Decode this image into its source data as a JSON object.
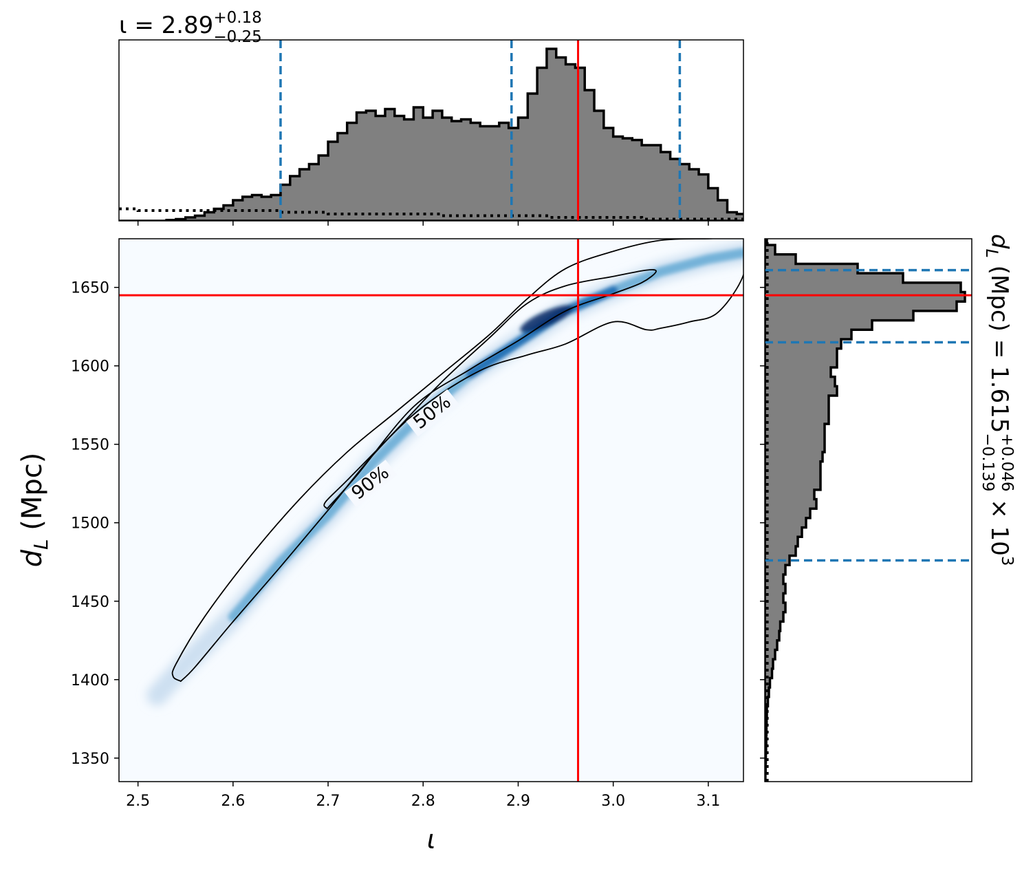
{
  "figure": {
    "top_title": {
      "prefix": "ι = 2.89",
      "sup": "+0.18",
      "sub": "−0.25"
    },
    "right_title": {
      "prefix": "d",
      "prefix_sub": "L",
      "middle": " (Mpc) = 1.615",
      "sup": "+0.046",
      "sub": "−0.139",
      "suffix": " × 10",
      "suffix_sup": "3"
    },
    "x_label": "ι",
    "y_label": {
      "main": "d",
      "sub": "L",
      "rest": " (Mpc)"
    },
    "contour_labels": [
      "50%",
      "90%"
    ]
  },
  "colors": {
    "hist_fill": "#808080",
    "hist_edge": "#000000",
    "quantile": "#1f77b4",
    "truth": "#ff0000",
    "density_low": "#f7fbff",
    "density_high": "#08306b"
  },
  "chart_data": [
    {
      "type": "area",
      "name": "iota-marginal-histogram",
      "xlim": [
        2.48,
        3.137
      ],
      "x_bins": [
        2.48,
        2.49,
        2.5,
        2.51,
        2.52,
        2.53,
        2.54,
        2.55,
        2.56,
        2.57,
        2.58,
        2.59,
        2.6,
        2.61,
        2.62,
        2.63,
        2.64,
        2.65,
        2.66,
        2.67,
        2.68,
        2.69,
        2.7,
        2.71,
        2.72,
        2.73,
        2.74,
        2.75,
        2.76,
        2.77,
        2.78,
        2.79,
        2.8,
        2.81,
        2.82,
        2.83,
        2.84,
        2.85,
        2.86,
        2.87,
        2.88,
        2.89,
        2.9,
        2.91,
        2.92,
        2.93,
        2.94,
        2.95,
        2.96,
        2.97,
        2.98,
        2.99,
        3.0,
        3.01,
        3.02,
        3.03,
        3.04,
        3.05,
        3.06,
        3.07,
        3.08,
        3.09,
        3.1,
        3.11,
        3.12,
        3.13
      ],
      "y": [
        0,
        0,
        0,
        0,
        0,
        0.005,
        0.01,
        0.02,
        0.03,
        0.05,
        0.07,
        0.09,
        0.12,
        0.14,
        0.15,
        0.14,
        0.15,
        0.21,
        0.26,
        0.3,
        0.33,
        0.38,
        0.46,
        0.51,
        0.57,
        0.63,
        0.64,
        0.61,
        0.65,
        0.61,
        0.59,
        0.66,
        0.6,
        0.64,
        0.6,
        0.58,
        0.59,
        0.57,
        0.55,
        0.55,
        0.57,
        0.54,
        0.6,
        0.74,
        0.89,
        1.0,
        0.95,
        0.91,
        0.89,
        0.76,
        0.64,
        0.54,
        0.49,
        0.48,
        0.47,
        0.44,
        0.44,
        0.4,
        0.36,
        0.33,
        0.3,
        0.27,
        0.19,
        0.12,
        0.05,
        0.04
      ],
      "prior_y": [
        0.07,
        0.07,
        0.06,
        0.06,
        0.06,
        0.06,
        0.06,
        0.06,
        0.06,
        0.06,
        0.06,
        0.06,
        0.06,
        0.06,
        0.06,
        0.06,
        0.06,
        0.05,
        0.05,
        0.05,
        0.05,
        0.05,
        0.04,
        0.04,
        0.04,
        0.04,
        0.04,
        0.04,
        0.04,
        0.04,
        0.04,
        0.04,
        0.04,
        0.04,
        0.03,
        0.03,
        0.03,
        0.03,
        0.03,
        0.03,
        0.03,
        0.03,
        0.03,
        0.03,
        0.03,
        0.02,
        0.02,
        0.02,
        0.02,
        0.02,
        0.02,
        0.02,
        0.02,
        0.02,
        0.02,
        0.01,
        0.01,
        0.01,
        0.01,
        0.01,
        0.01,
        0.01,
        0.01,
        0.01,
        0.01,
        0.01
      ],
      "quantiles": [
        2.65,
        2.893,
        3.07
      ],
      "truth": 2.963
    },
    {
      "type": "area",
      "name": "dL-marginal-histogram",
      "ylim": [
        1335,
        1681
      ],
      "y_bins": [
        1335,
        1341,
        1347,
        1353,
        1359,
        1365,
        1371,
        1377,
        1383,
        1389,
        1395,
        1401,
        1407,
        1413,
        1419,
        1425,
        1431,
        1437,
        1443,
        1449,
        1455,
        1461,
        1467,
        1473,
        1479,
        1485,
        1491,
        1497,
        1503,
        1509,
        1515,
        1521,
        1527,
        1533,
        1539,
        1545,
        1551,
        1557,
        1563,
        1569,
        1575,
        1581,
        1587,
        1593,
        1599,
        1605,
        1611,
        1617,
        1623,
        1629,
        1635,
        1641,
        1647,
        1653,
        1659,
        1665,
        1671,
        1677
      ],
      "x": [
        0.003,
        0.004,
        0.005,
        0.006,
        0.007,
        0.008,
        0.009,
        0.01,
        0.015,
        0.02,
        0.025,
        0.035,
        0.04,
        0.05,
        0.06,
        0.07,
        0.075,
        0.09,
        0.1,
        0.09,
        0.1,
        0.09,
        0.1,
        0.12,
        0.15,
        0.16,
        0.18,
        0.2,
        0.22,
        0.25,
        0.24,
        0.27,
        0.27,
        0.27,
        0.28,
        0.29,
        0.29,
        0.29,
        0.31,
        0.31,
        0.31,
        0.35,
        0.34,
        0.32,
        0.35,
        0.35,
        0.37,
        0.42,
        0.52,
        0.72,
        0.93,
        0.97,
        0.95,
        0.67,
        0.45,
        0.15,
        0.05,
        0.01
      ],
      "prior_x": [
        0.012,
        0.012,
        0.012,
        0.012,
        0.012,
        0.012,
        0.012,
        0.012,
        0.012,
        0.012,
        0.012,
        0.012,
        0.012,
        0.012,
        0.012,
        0.012,
        0.012,
        0.012,
        0.012,
        0.012,
        0.012,
        0.012,
        0.012,
        0.012,
        0.012,
        0.012,
        0.012,
        0.012,
        0.012,
        0.012,
        0.012,
        0.012,
        0.012,
        0.012,
        0.012,
        0.012,
        0.012,
        0.012,
        0.012,
        0.012,
        0.012,
        0.012,
        0.012,
        0.012,
        0.012,
        0.012,
        0.012,
        0.012,
        0.012,
        0.012,
        0.012,
        0.012,
        0.012,
        0.012,
        0.012,
        0.012,
        0.012,
        0.012
      ],
      "quantiles": [
        1476,
        1615,
        1661
      ],
      "truth": 1645
    },
    {
      "type": "heatmap",
      "name": "joint-posterior",
      "xlim": [
        2.48,
        3.137
      ],
      "ylim": [
        1335,
        1681
      ],
      "xticks": [
        2.5,
        2.6,
        2.7,
        2.8,
        2.9,
        3.0,
        3.1
      ],
      "xtick_labels": [
        "2.5",
        "2.6",
        "2.7",
        "2.8",
        "2.9",
        "3.0",
        "3.1"
      ],
      "yticks": [
        1350,
        1400,
        1450,
        1500,
        1550,
        1600,
        1650
      ],
      "ytick_labels": [
        "1350",
        "1400",
        "1450",
        "1500",
        "1550",
        "1600",
        "1650"
      ],
      "ridge": [
        [
          2.52,
          1390
        ],
        [
          2.55,
          1410
        ],
        [
          2.6,
          1440
        ],
        [
          2.65,
          1475
        ],
        [
          2.7,
          1505
        ],
        [
          2.75,
          1540
        ],
        [
          2.8,
          1570
        ],
        [
          2.85,
          1595
        ],
        [
          2.9,
          1615
        ],
        [
          2.95,
          1635
        ],
        [
          3.0,
          1648
        ],
        [
          3.05,
          1660
        ],
        [
          3.1,
          1668
        ],
        [
          3.137,
          1672
        ]
      ],
      "peak": [
        2.93,
        1630
      ],
      "contour_90": [
        [
          2.545,
          1399
        ],
        [
          2.537,
          1402
        ],
        [
          2.54,
          1410
        ],
        [
          2.57,
          1440
        ],
        [
          2.62,
          1480
        ],
        [
          2.67,
          1515
        ],
        [
          2.72,
          1545
        ],
        [
          2.77,
          1570
        ],
        [
          2.82,
          1595
        ],
        [
          2.87,
          1620
        ],
        [
          2.91,
          1643
        ],
        [
          2.95,
          1662
        ],
        [
          3.0,
          1673
        ],
        [
          3.05,
          1680
        ],
        [
          3.1,
          1681
        ],
        [
          3.137,
          1681
        ],
        [
          3.137,
          1658
        ],
        [
          3.11,
          1634
        ],
        [
          3.08,
          1628
        ],
        [
          3.05,
          1624
        ],
        [
          3.035,
          1623
        ],
        [
          3.0,
          1628
        ],
        [
          2.95,
          1614
        ],
        [
          2.91,
          1607
        ],
        [
          2.86,
          1597
        ],
        [
          2.8,
          1574
        ],
        [
          2.75,
          1545
        ],
        [
          2.7,
          1508
        ],
        [
          2.65,
          1472
        ],
        [
          2.6,
          1437
        ],
        [
          2.56,
          1408
        ],
        [
          2.545,
          1399
        ]
      ],
      "contour_50": [
        [
          2.699,
          1509
        ],
        [
          2.697,
          1513
        ],
        [
          2.72,
          1527
        ],
        [
          2.77,
          1558
        ],
        [
          2.82,
          1590
        ],
        [
          2.87,
          1618
        ],
        [
          2.91,
          1640
        ],
        [
          2.95,
          1651
        ],
        [
          3.0,
          1657
        ],
        [
          3.035,
          1661
        ],
        [
          3.045,
          1660
        ],
        [
          3.03,
          1653
        ],
        [
          3.0,
          1646
        ],
        [
          2.95,
          1635
        ],
        [
          2.9,
          1616
        ],
        [
          2.85,
          1598
        ],
        [
          2.79,
          1574
        ],
        [
          2.73,
          1530
        ],
        [
          2.699,
          1509
        ]
      ],
      "contour_label_positions": {
        "50%": [
          2.81,
          1570
        ],
        "90%": [
          2.745,
          1525
        ]
      },
      "truth": [
        2.963,
        1645
      ]
    }
  ]
}
